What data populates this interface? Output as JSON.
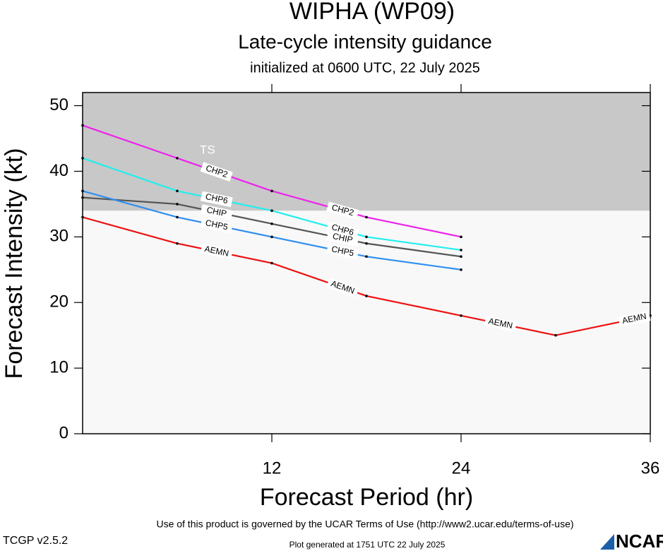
{
  "chart_data": {
    "type": "line",
    "title": "WIPHA (WP09)",
    "subtitle": "Late-cycle intensity guidance",
    "initialized": "initialized at 0600 UTC, 22 July 2025",
    "x_label": "Forecast Period (hr)",
    "y_label": "Forecast Intensity (kt)",
    "x": [
      0,
      6,
      12,
      18,
      24,
      30,
      36
    ],
    "xlim": [
      0,
      36
    ],
    "xticks": [
      12,
      24,
      36
    ],
    "ylim": [
      0,
      52
    ],
    "yticks": [
      0,
      10,
      20,
      30,
      40,
      50
    ],
    "bands": [
      {
        "label": "TS",
        "from": 34,
        "color": "#c8c8c8"
      }
    ],
    "background": "#f8f8f8",
    "series": [
      {
        "name": "CHP2",
        "color": "#ee22ee",
        "values": [
          47,
          42,
          37,
          33,
          30,
          null,
          null
        ]
      },
      {
        "name": "CHP6",
        "color": "#22eeee",
        "values": [
          42,
          37,
          34,
          30,
          28,
          null,
          null
        ]
      },
      {
        "name": "CHIP",
        "color": "#555555",
        "values": [
          36,
          35,
          32,
          29,
          27,
          null,
          null
        ]
      },
      {
        "name": "CHP5",
        "color": "#2f8ef0",
        "values": [
          37,
          33,
          30,
          27,
          25,
          null,
          null
        ]
      },
      {
        "name": "AEMN",
        "color": "#ee1111",
        "values": [
          33,
          29,
          26,
          21,
          18,
          15,
          18
        ]
      }
    ]
  },
  "footer": {
    "terms": "Use of this product is governed by the UCAR Terms of Use (http://www2.ucar.edu/terms-of-use)",
    "version": "TCGP v2.5.2",
    "generated": "Plot generated at 1751 UTC   22 July 2025",
    "logo": "NCAR"
  }
}
